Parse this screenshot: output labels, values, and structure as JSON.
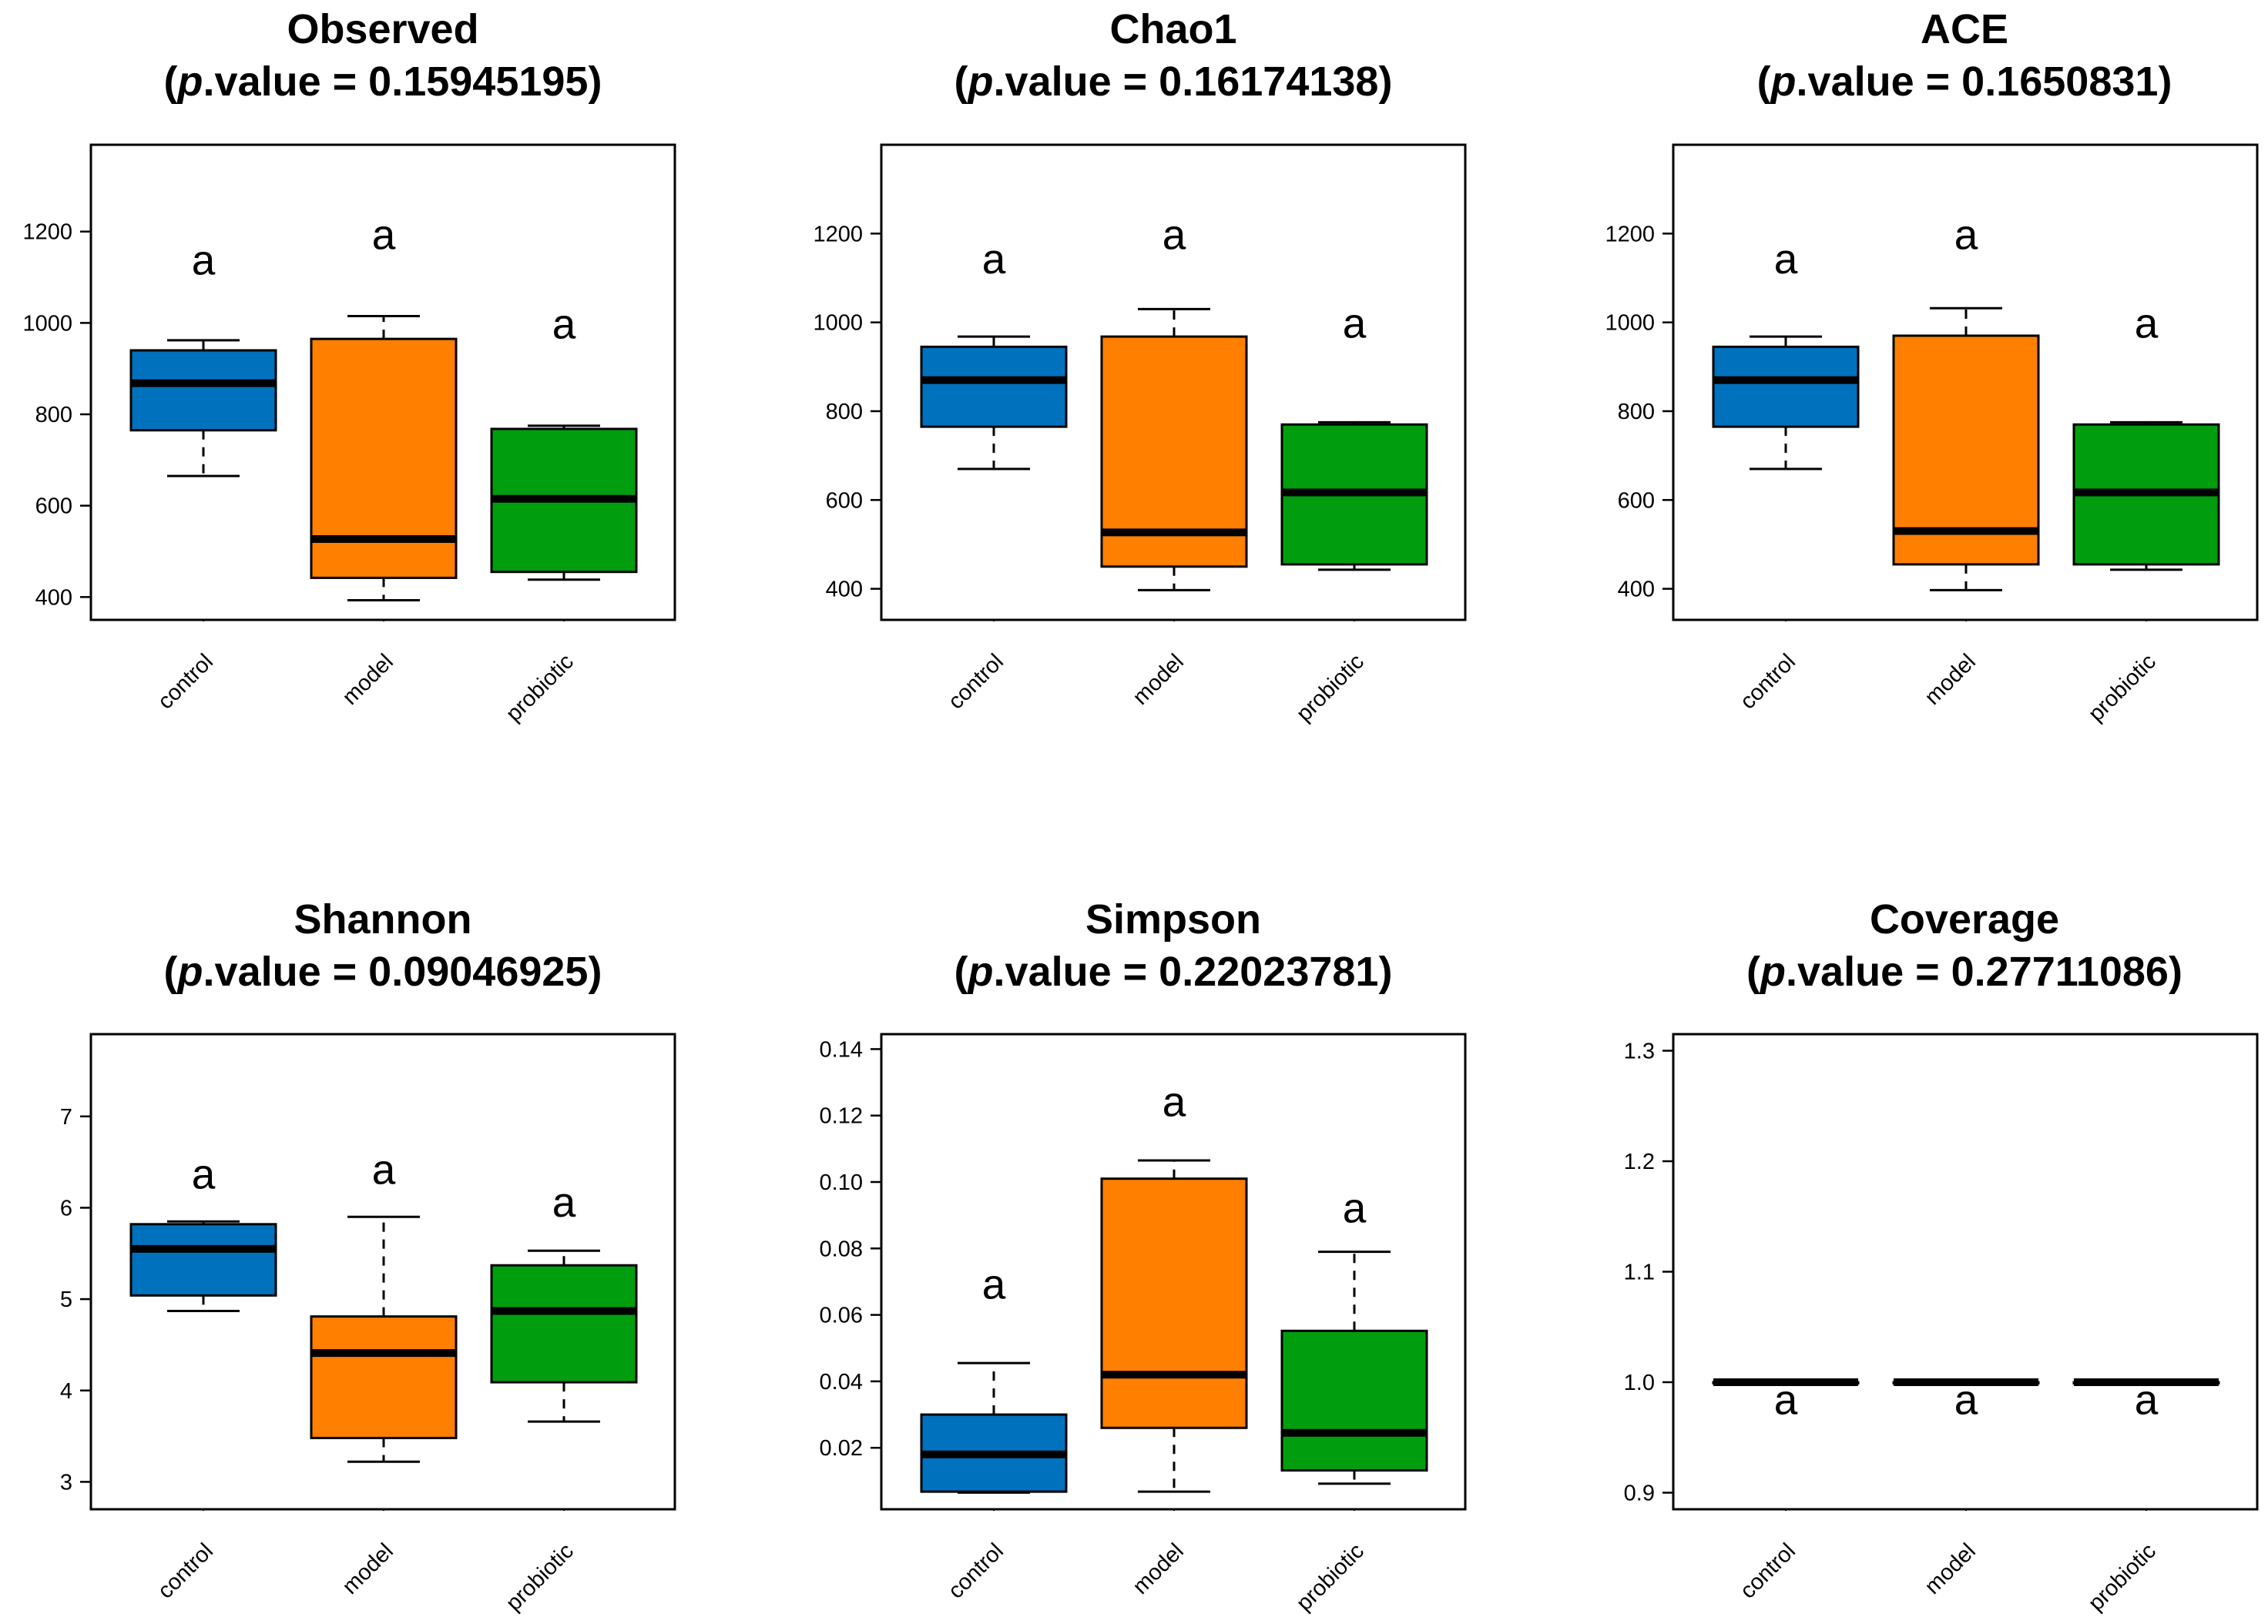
{
  "figure_colors": {
    "control": "#0072BD",
    "model": "#FF7F00",
    "probiotic": "#009E0E",
    "line": "#000000",
    "background": "#FFFFFF"
  },
  "chart_data": [
    {
      "type": "boxplot",
      "title": "Observed",
      "p_value_label": "p",
      "p_value_text": ".value = 0.15945195",
      "categories": [
        "control",
        "model",
        "probiotic"
      ],
      "ylim": [
        350,
        1390
      ],
      "yticks": [
        400,
        600,
        800,
        1000,
        1200
      ],
      "ytick_labels": [
        "400",
        "600",
        "800",
        "1000",
        "1200"
      ],
      "boxes": [
        {
          "name": "control",
          "min": 665,
          "q1": 765,
          "median": 868,
          "q3": 940,
          "max": 962,
          "label": "a",
          "label_y": 1140
        },
        {
          "name": "model",
          "min": 393,
          "q1": 442,
          "median": 527,
          "q3": 965,
          "max": 1015,
          "label": "a",
          "label_y": 1195
        },
        {
          "name": "probiotic",
          "min": 438,
          "q1": 455,
          "median": 615,
          "q3": 768,
          "max": 775,
          "label": "a",
          "label_y": 1000
        }
      ]
    },
    {
      "type": "boxplot",
      "title": "Chao1",
      "p_value_label": "p",
      "p_value_text": ".value = 0.16174138",
      "categories": [
        "control",
        "model",
        "probiotic"
      ],
      "ylim": [
        330,
        1400
      ],
      "yticks": [
        400,
        600,
        800,
        1000,
        1200
      ],
      "ytick_labels": [
        "400",
        "600",
        "800",
        "1000",
        "1200"
      ],
      "boxes": [
        {
          "name": "control",
          "min": 670,
          "q1": 765,
          "median": 870,
          "q3": 945,
          "max": 968,
          "label": "a",
          "label_y": 1145
        },
        {
          "name": "model",
          "min": 397,
          "q1": 450,
          "median": 527,
          "q3": 968,
          "max": 1030,
          "label": "a",
          "label_y": 1200
        },
        {
          "name": "probiotic",
          "min": 443,
          "q1": 455,
          "median": 617,
          "q3": 770,
          "max": 775,
          "label": "a",
          "label_y": 1000
        }
      ]
    },
    {
      "type": "boxplot",
      "title": "ACE",
      "p_value_label": "p",
      "p_value_text": ".value = 0.1650831",
      "categories": [
        "control",
        "model",
        "probiotic"
      ],
      "ylim": [
        330,
        1400
      ],
      "yticks": [
        400,
        600,
        800,
        1000,
        1200
      ],
      "ytick_labels": [
        "400",
        "600",
        "800",
        "1000",
        "1200"
      ],
      "boxes": [
        {
          "name": "control",
          "min": 670,
          "q1": 765,
          "median": 870,
          "q3": 945,
          "max": 968,
          "label": "a",
          "label_y": 1145
        },
        {
          "name": "model",
          "min": 397,
          "q1": 455,
          "median": 530,
          "q3": 970,
          "max": 1032,
          "label": "a",
          "label_y": 1200
        },
        {
          "name": "probiotic",
          "min": 443,
          "q1": 455,
          "median": 617,
          "q3": 770,
          "max": 775,
          "label": "a",
          "label_y": 1000
        }
      ]
    },
    {
      "type": "boxplot",
      "title": "Shannon",
      "p_value_label": "p",
      "p_value_text": ".value = 0.09046925",
      "categories": [
        "control",
        "model",
        "probiotic"
      ],
      "ylim": [
        2.7,
        7.9
      ],
      "yticks": [
        3,
        4,
        5,
        6,
        7
      ],
      "ytick_labels": [
        "3",
        "4",
        "5",
        "6",
        "7"
      ],
      "boxes": [
        {
          "name": "control",
          "min": 4.87,
          "q1": 5.04,
          "median": 5.55,
          "q3": 5.82,
          "max": 5.85,
          "label": "a",
          "label_y": 6.38
        },
        {
          "name": "model",
          "min": 3.22,
          "q1": 3.48,
          "median": 4.41,
          "q3": 4.81,
          "max": 5.9,
          "label": "a",
          "label_y": 6.43
        },
        {
          "name": "probiotic",
          "min": 3.66,
          "q1": 4.09,
          "median": 4.87,
          "q3": 5.37,
          "max": 5.53,
          "label": "a",
          "label_y": 6.07
        }
      ]
    },
    {
      "type": "boxplot",
      "title": "Simpson",
      "p_value_label": "p",
      "p_value_text": ".value = 0.22023781",
      "categories": [
        "control",
        "model",
        "probiotic"
      ],
      "ylim": [
        0.0015,
        0.1445
      ],
      "yticks": [
        0.02,
        0.04,
        0.06,
        0.08,
        0.1,
        0.12,
        0.14
      ],
      "ytick_labels": [
        "0.02",
        "0.04",
        "0.06",
        "0.08",
        "0.10",
        "0.12",
        "0.14"
      ],
      "boxes": [
        {
          "name": "control",
          "min": 0.0065,
          "q1": 0.0068,
          "median": 0.018,
          "q3": 0.03,
          "max": 0.0455,
          "label": "a",
          "label_y": 0.0695
        },
        {
          "name": "model",
          "min": 0.0068,
          "q1": 0.026,
          "median": 0.042,
          "q3": 0.101,
          "max": 0.1065,
          "label": "a",
          "label_y": 0.1245
        },
        {
          "name": "probiotic",
          "min": 0.0092,
          "q1": 0.0132,
          "median": 0.0245,
          "q3": 0.0552,
          "max": 0.079,
          "label": "a",
          "label_y": 0.0925
        }
      ]
    },
    {
      "type": "boxplot",
      "title": "Coverage",
      "p_value_label": "p",
      "p_value_text": ".value = 0.27711086",
      "categories": [
        "control",
        "model",
        "probiotic"
      ],
      "ylim": [
        0.885,
        1.315
      ],
      "yticks": [
        0.9,
        1.0,
        1.1,
        1.2,
        1.3
      ],
      "ytick_labels": [
        "0.9",
        "1.0",
        "1.1",
        "1.2",
        "1.3"
      ],
      "boxes": [
        {
          "name": "control",
          "min": 0.999,
          "q1": 0.999,
          "median": 1.0,
          "q3": 1.0,
          "max": 1.0,
          "label": "a",
          "label_y": 0.985
        },
        {
          "name": "model",
          "min": 0.999,
          "q1": 0.999,
          "median": 1.0,
          "q3": 1.0,
          "max": 1.0,
          "label": "a",
          "label_y": 0.985
        },
        {
          "name": "probiotic",
          "min": 0.999,
          "q1": 0.999,
          "median": 1.0,
          "q3": 1.0,
          "max": 1.0,
          "label": "a",
          "label_y": 0.985
        }
      ]
    }
  ]
}
